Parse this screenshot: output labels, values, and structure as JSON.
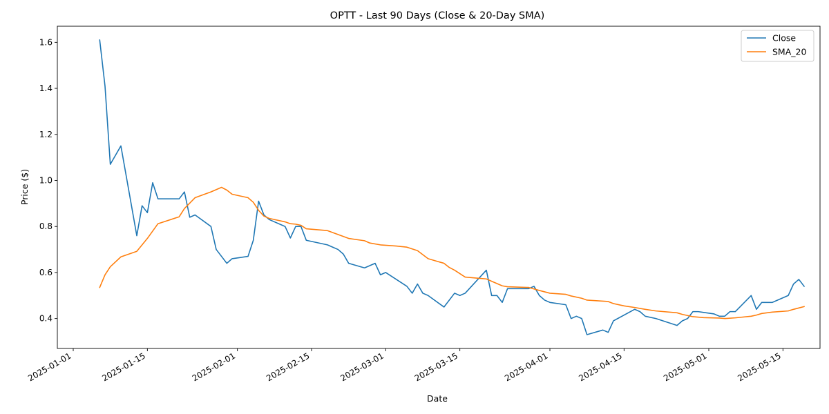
{
  "chart_data": {
    "type": "line",
    "title": "OPTT - Last 90 Days (Close & 20-Day SMA)",
    "xlabel": "Date",
    "ylabel": "Price ($)",
    "xlim": [
      "2024-12-29",
      "2025-05-22"
    ],
    "ylim": [
      0.27,
      1.67
    ],
    "x_ticks": [
      "2025-01-01",
      "2025-01-15",
      "2025-02-01",
      "2025-02-15",
      "2025-03-01",
      "2025-03-15",
      "2025-04-01",
      "2025-04-15",
      "2025-05-01",
      "2025-05-15"
    ],
    "y_ticks": [
      0.4,
      0.6,
      0.8,
      1.0,
      1.2,
      1.4,
      1.6
    ],
    "y_tick_labels": [
      "0.4",
      "0.6",
      "0.8",
      "1.0",
      "1.2",
      "1.4",
      "1.6"
    ],
    "legend_position": "top-right",
    "grid": false,
    "series": [
      {
        "name": "Close",
        "color": "#1f77b4",
        "points": [
          [
            "2025-01-06",
            1.61
          ],
          [
            "2025-01-07",
            1.41
          ],
          [
            "2025-01-08",
            1.07
          ],
          [
            "2025-01-10",
            1.15
          ],
          [
            "2025-01-13",
            0.76
          ],
          [
            "2025-01-14",
            0.89
          ],
          [
            "2025-01-15",
            0.86
          ],
          [
            "2025-01-16",
            0.99
          ],
          [
            "2025-01-17",
            0.92
          ],
          [
            "2025-01-21",
            0.92
          ],
          [
            "2025-01-22",
            0.95
          ],
          [
            "2025-01-23",
            0.84
          ],
          [
            "2025-01-24",
            0.85
          ],
          [
            "2025-01-27",
            0.8
          ],
          [
            "2025-01-28",
            0.7
          ],
          [
            "2025-01-30",
            0.64
          ],
          [
            "2025-01-31",
            0.66
          ],
          [
            "2025-02-03",
            0.67
          ],
          [
            "2025-02-04",
            0.74
          ],
          [
            "2025-02-05",
            0.91
          ],
          [
            "2025-02-06",
            0.85
          ],
          [
            "2025-02-07",
            0.83
          ],
          [
            "2025-02-10",
            0.8
          ],
          [
            "2025-02-11",
            0.75
          ],
          [
            "2025-02-12",
            0.8
          ],
          [
            "2025-02-13",
            0.8
          ],
          [
            "2025-02-14",
            0.74
          ],
          [
            "2025-02-18",
            0.72
          ],
          [
            "2025-02-19",
            0.71
          ],
          [
            "2025-02-20",
            0.7
          ],
          [
            "2025-02-21",
            0.68
          ],
          [
            "2025-02-22",
            0.64
          ],
          [
            "2025-02-25",
            0.62
          ],
          [
            "2025-02-27",
            0.64
          ],
          [
            "2025-02-28",
            0.59
          ],
          [
            "2025-03-01",
            0.6
          ],
          [
            "2025-03-03",
            0.57
          ],
          [
            "2025-03-05",
            0.54
          ],
          [
            "2025-03-06",
            0.51
          ],
          [
            "2025-03-07",
            0.55
          ],
          [
            "2025-03-08",
            0.51
          ],
          [
            "2025-03-09",
            0.5
          ],
          [
            "2025-03-12",
            0.45
          ],
          [
            "2025-03-14",
            0.51
          ],
          [
            "2025-03-15",
            0.5
          ],
          [
            "2025-03-16",
            0.51
          ],
          [
            "2025-03-20",
            0.61
          ],
          [
            "2025-03-21",
            0.5
          ],
          [
            "2025-03-22",
            0.5
          ],
          [
            "2025-03-23",
            0.47
          ],
          [
            "2025-03-24",
            0.53
          ],
          [
            "2025-03-28",
            0.53
          ],
          [
            "2025-03-29",
            0.54
          ],
          [
            "2025-03-30",
            0.5
          ],
          [
            "2025-03-31",
            0.48
          ],
          [
            "2025-04-01",
            0.47
          ],
          [
            "2025-04-04",
            0.46
          ],
          [
            "2025-04-05",
            0.4
          ],
          [
            "2025-04-06",
            0.41
          ],
          [
            "2025-04-07",
            0.4
          ],
          [
            "2025-04-08",
            0.33
          ],
          [
            "2025-04-11",
            0.35
          ],
          [
            "2025-04-12",
            0.34
          ],
          [
            "2025-04-13",
            0.39
          ],
          [
            "2025-04-17",
            0.44
          ],
          [
            "2025-04-18",
            0.43
          ],
          [
            "2025-04-19",
            0.41
          ],
          [
            "2025-04-21",
            0.4
          ],
          [
            "2025-04-25",
            0.37
          ],
          [
            "2025-04-26",
            0.39
          ],
          [
            "2025-04-27",
            0.4
          ],
          [
            "2025-04-28",
            0.43
          ],
          [
            "2025-04-29",
            0.43
          ],
          [
            "2025-05-02",
            0.42
          ],
          [
            "2025-05-03",
            0.41
          ],
          [
            "2025-05-04",
            0.41
          ],
          [
            "2025-05-05",
            0.43
          ],
          [
            "2025-05-06",
            0.43
          ],
          [
            "2025-05-09",
            0.5
          ],
          [
            "2025-05-10",
            0.44
          ],
          [
            "2025-05-11",
            0.47
          ],
          [
            "2025-05-13",
            0.47
          ],
          [
            "2025-05-16",
            0.5
          ],
          [
            "2025-05-17",
            0.55
          ],
          [
            "2025-05-18",
            0.57
          ],
          [
            "2025-05-19",
            0.54
          ]
        ]
      },
      {
        "name": "SMA_20",
        "color": "#ff7f0e",
        "points": [
          [
            "2025-01-06",
            0.535
          ],
          [
            "2025-01-07",
            0.59
          ],
          [
            "2025-01-08",
            0.625
          ],
          [
            "2025-01-10",
            0.668
          ],
          [
            "2025-01-13",
            0.692
          ],
          [
            "2025-01-15",
            0.748
          ],
          [
            "2025-01-17",
            0.812
          ],
          [
            "2025-01-21",
            0.842
          ],
          [
            "2025-01-22",
            0.878
          ],
          [
            "2025-01-24",
            0.925
          ],
          [
            "2025-01-27",
            0.95
          ],
          [
            "2025-01-29",
            0.97
          ],
          [
            "2025-01-30",
            0.958
          ],
          [
            "2025-01-31",
            0.94
          ],
          [
            "2025-02-03",
            0.925
          ],
          [
            "2025-02-04",
            0.905
          ],
          [
            "2025-02-05",
            0.87
          ],
          [
            "2025-02-06",
            0.845
          ],
          [
            "2025-02-07",
            0.835
          ],
          [
            "2025-02-10",
            0.82
          ],
          [
            "2025-02-11",
            0.812
          ],
          [
            "2025-02-12",
            0.81
          ],
          [
            "2025-02-13",
            0.805
          ],
          [
            "2025-02-14",
            0.79
          ],
          [
            "2025-02-18",
            0.782
          ],
          [
            "2025-02-20",
            0.765
          ],
          [
            "2025-02-22",
            0.748
          ],
          [
            "2025-02-25",
            0.738
          ],
          [
            "2025-02-26",
            0.728
          ],
          [
            "2025-02-28",
            0.72
          ],
          [
            "2025-03-03",
            0.715
          ],
          [
            "2025-03-05",
            0.71
          ],
          [
            "2025-03-07",
            0.695
          ],
          [
            "2025-03-09",
            0.66
          ],
          [
            "2025-03-12",
            0.64
          ],
          [
            "2025-03-13",
            0.622
          ],
          [
            "2025-03-14",
            0.61
          ],
          [
            "2025-03-16",
            0.58
          ],
          [
            "2025-03-18",
            0.576
          ],
          [
            "2025-03-20",
            0.572
          ],
          [
            "2025-03-21",
            0.562
          ],
          [
            "2025-03-23",
            0.542
          ],
          [
            "2025-03-24",
            0.538
          ],
          [
            "2025-03-28",
            0.535
          ],
          [
            "2025-03-30",
            0.522
          ],
          [
            "2025-04-01",
            0.51
          ],
          [
            "2025-04-04",
            0.505
          ],
          [
            "2025-04-05",
            0.498
          ],
          [
            "2025-04-07",
            0.488
          ],
          [
            "2025-04-08",
            0.48
          ],
          [
            "2025-04-12",
            0.474
          ],
          [
            "2025-04-13",
            0.465
          ],
          [
            "2025-04-15",
            0.455
          ],
          [
            "2025-04-17",
            0.448
          ],
          [
            "2025-04-19",
            0.44
          ],
          [
            "2025-04-21",
            0.433
          ],
          [
            "2025-04-25",
            0.425
          ],
          [
            "2025-04-26",
            0.418
          ],
          [
            "2025-04-28",
            0.408
          ],
          [
            "2025-04-30",
            0.404
          ],
          [
            "2025-05-03",
            0.402
          ],
          [
            "2025-05-04",
            0.4
          ],
          [
            "2025-05-06",
            0.403
          ],
          [
            "2025-05-09",
            0.41
          ],
          [
            "2025-05-10",
            0.415
          ],
          [
            "2025-05-11",
            0.422
          ],
          [
            "2025-05-13",
            0.428
          ],
          [
            "2025-05-16",
            0.433
          ],
          [
            "2025-05-17",
            0.44
          ],
          [
            "2025-05-18",
            0.446
          ],
          [
            "2025-05-19",
            0.452
          ]
        ]
      }
    ]
  }
}
